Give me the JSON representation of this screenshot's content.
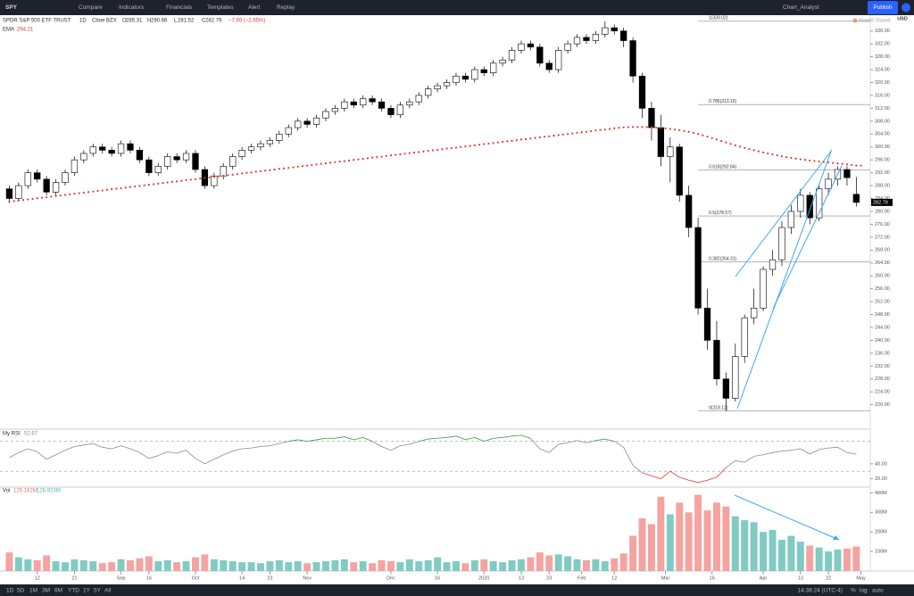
{
  "toolbar": {
    "symbol": "SPY",
    "buttons": [
      "Compare",
      "Indicators",
      "Financials",
      "Templates",
      "Alert",
      "Replay"
    ],
    "layout_name": "Chart_Analyst",
    "publish": "Publish"
  },
  "status": {
    "market": "Market Closed",
    "currency": "USD"
  },
  "chart_data": [
    {
      "type": "candlestick",
      "title": "SPDR S&P 500 ETF TRUST",
      "interval": "1D",
      "exchange": "Cboe BZX",
      "ohlc_labels": [
        "O",
        "H",
        "L",
        "C"
      ],
      "change": "−7.69 (−2.65%)",
      "open": [
        287,
        284,
        288,
        292,
        290,
        286,
        289,
        292,
        296,
        298,
        300,
        299,
        298,
        301,
        299,
        296,
        292,
        294,
        297,
        296,
        298,
        293,
        288,
        291,
        294,
        297,
        299,
        300,
        301,
        302,
        304,
        306,
        308,
        307,
        309,
        311,
        312,
        314,
        313,
        315,
        314,
        312,
        310,
        313,
        314,
        316,
        318,
        319,
        320,
        322,
        321,
        324,
        323,
        326,
        327,
        330,
        332,
        331,
        326,
        324,
        330,
        332,
        334,
        333,
        335,
        337,
        336,
        333,
        322,
        312,
        306,
        297,
        300,
        285,
        275,
        250,
        240,
        228,
        222,
        235,
        247,
        250,
        262,
        265,
        275,
        280,
        285,
        278,
        287,
        290,
        293,
        285.31
      ],
      "high": [
        288,
        289,
        293,
        293,
        291,
        290,
        293,
        297,
        299,
        301,
        301,
        300,
        302,
        302,
        300,
        297,
        295,
        298,
        298,
        299,
        299,
        294,
        292,
        295,
        298,
        300,
        301,
        302,
        303,
        305,
        307,
        309,
        309,
        310,
        312,
        313,
        315,
        315,
        316,
        316,
        315,
        313,
        314,
        315,
        317,
        319,
        320,
        321,
        323,
        323,
        325,
        325,
        327,
        328,
        331,
        333,
        333,
        332,
        327,
        331,
        333,
        335,
        335,
        336,
        339,
        338,
        337,
        334,
        323,
        314,
        310,
        303,
        301,
        288,
        278,
        256,
        246,
        230,
        239,
        248,
        256,
        263,
        268,
        277,
        282,
        287,
        286,
        288,
        292,
        294,
        294,
        290.66
      ],
      "low": [
        283,
        283,
        287,
        289,
        285,
        285,
        288,
        291,
        295,
        297,
        298,
        297,
        297,
        298,
        295,
        291,
        291,
        293,
        295,
        295,
        292,
        287,
        287,
        290,
        293,
        296,
        298,
        299,
        300,
        301,
        303,
        305,
        306,
        306,
        308,
        310,
        311,
        312,
        312,
        313,
        311,
        309,
        309,
        312,
        313,
        315,
        317,
        318,
        319,
        320,
        320,
        322,
        322,
        325,
        326,
        329,
        330,
        325,
        323,
        323,
        329,
        331,
        332,
        332,
        334,
        335,
        331,
        320,
        309,
        302,
        294,
        289,
        283,
        272,
        248,
        237,
        226,
        218,
        221,
        233,
        245,
        249,
        260,
        263,
        273,
        278,
        276,
        277,
        285,
        288,
        288,
        281.52
      ],
      "close": [
        284,
        288,
        292,
        290,
        286,
        289,
        292,
        296,
        298,
        300,
        299,
        298,
        301,
        299,
        296,
        292,
        294,
        297,
        296,
        298,
        293,
        288,
        291,
        294,
        297,
        299,
        300,
        301,
        302,
        304,
        306,
        308,
        307,
        309,
        311,
        312,
        314,
        313,
        315,
        314,
        312,
        310,
        313,
        314,
        316,
        318,
        319,
        320,
        322,
        321,
        324,
        323,
        326,
        327,
        330,
        332,
        331,
        326,
        324,
        330,
        332,
        334,
        333,
        335,
        337,
        336,
        333,
        322,
        312,
        306,
        297,
        300,
        285,
        275,
        250,
        240,
        228,
        222,
        235,
        247,
        250,
        262,
        265,
        275,
        280,
        285,
        278,
        287,
        290,
        293,
        290.48,
        282.79
      ],
      "up_color": "#ffffff",
      "down_color": "#000000",
      "xlim": [
        -1,
        92.5
      ],
      "xticks": [
        {
          "value": 3,
          "label": "12"
        },
        {
          "value": 7,
          "label": "21"
        },
        {
          "value": 12,
          "label": "Sep"
        },
        {
          "value": 15,
          "label": "16"
        },
        {
          "value": 20,
          "label": "Oct"
        },
        {
          "value": 25,
          "label": "14"
        },
        {
          "value": 28,
          "label": "23"
        },
        {
          "value": 32,
          "label": "Nov"
        },
        {
          "value": 41,
          "label": "Dec"
        },
        {
          "value": 46,
          "label": "16"
        },
        {
          "value": 51,
          "label": "2020"
        },
        {
          "value": 55,
          "label": "13"
        },
        {
          "value": 58,
          "label": "23"
        },
        {
          "value": 61.5,
          "label": "Feb"
        },
        {
          "value": 65,
          "label": "12"
        },
        {
          "value": 70.5,
          "label": "Mar"
        },
        {
          "value": 75.5,
          "label": "16"
        },
        {
          "value": 81,
          "label": "Apr"
        },
        {
          "value": 85,
          "label": "13"
        },
        {
          "value": 88,
          "label": "22"
        },
        {
          "value": 91.5,
          "label": "May"
        }
      ],
      "ylim": [
        212.7,
        340.9
      ],
      "yticks": [
        {
          "value": 220,
          "label": "220.00"
        },
        {
          "value": 224,
          "label": "224.00"
        },
        {
          "value": 228,
          "label": "228.00"
        },
        {
          "value": 232,
          "label": "232.00"
        },
        {
          "value": 236,
          "label": "236.00"
        },
        {
          "value": 240,
          "label": "240.00"
        },
        {
          "value": 244,
          "label": "244.00"
        },
        {
          "value": 248,
          "label": "248.00"
        },
        {
          "value": 252,
          "label": "252.00"
        },
        {
          "value": 256,
          "label": "256.00"
        },
        {
          "value": 260,
          "label": "260.00"
        },
        {
          "value": 264,
          "label": "264.00"
        },
        {
          "value": 268,
          "label": "268.00"
        },
        {
          "value": 272,
          "label": "272.00"
        },
        {
          "value": 276,
          "label": "276.00"
        },
        {
          "value": 280,
          "label": "280.00"
        },
        {
          "value": 284,
          "label": "284.00"
        },
        {
          "value": 288,
          "label": "288.00"
        },
        {
          "value": 292,
          "label": "292.00"
        },
        {
          "value": 296,
          "label": "296.00"
        },
        {
          "value": 300,
          "label": "300.00"
        },
        {
          "value": 304,
          "label": "304.00"
        },
        {
          "value": 308,
          "label": "308.00"
        },
        {
          "value": 312,
          "label": "312.00"
        },
        {
          "value": 316,
          "label": "316.00"
        },
        {
          "value": 320,
          "label": "320.00"
        },
        {
          "value": 324,
          "label": "324.00"
        },
        {
          "value": 328,
          "label": "328.00"
        },
        {
          "value": 332,
          "label": "332.00"
        },
        {
          "value": 336,
          "label": "336.00"
        }
      ],
      "overlays": [
        {
          "name": "EMA",
          "color": "#e53935",
          "values": [
            283.0,
            283.4,
            283.7,
            284.1,
            284.4,
            284.8,
            285.1,
            285.5,
            285.8,
            286.2,
            286.5,
            286.9,
            287.2,
            287.6,
            287.9,
            288.3,
            288.6,
            289.0,
            289.3,
            289.7,
            290.0,
            290.4,
            290.7,
            291.1,
            291.4,
            291.8,
            292.1,
            292.5,
            292.8,
            293.2,
            293.5,
            293.9,
            294.2,
            294.6,
            294.9,
            295.3,
            295.6,
            296.0,
            296.3,
            296.7,
            297.0,
            297.4,
            297.7,
            298.1,
            298.4,
            298.8,
            299.1,
            299.5,
            299.8,
            300.2,
            300.5,
            300.9,
            301.2,
            301.6,
            301.9,
            302.3,
            302.6,
            303.0,
            303.3,
            303.7,
            304.0,
            304.4,
            304.7,
            305.1,
            305.4,
            305.8,
            306.1,
            306.2,
            306.2,
            306.1,
            305.9,
            305.6,
            305.2,
            304.7,
            304.0,
            303.2,
            302.3,
            301.4,
            300.5,
            299.7,
            299.0,
            298.3,
            297.7,
            297.1,
            296.6,
            296.2,
            295.8,
            295.5,
            295.2,
            294.9,
            294.6,
            294.21
          ]
        }
      ],
      "fib_start": 74,
      "fib_levels": [
        {
          "label": "1(339.02)",
          "value": 339.02
        },
        {
          "label": "0.786(313.15)",
          "value": 313.15
        },
        {
          "label": "0.618(292.84)",
          "value": 292.84
        },
        {
          "label": "0.5(278.57)",
          "value": 278.57
        },
        {
          "label": "0.382(264.31)",
          "value": 264.31
        },
        {
          "label": "0(218.12)",
          "value": 218.12
        }
      ]
    },
    {
      "type": "line",
      "name": "My RSI",
      "color": "#8a8a8a",
      "over_color": "#2e9e3a",
      "under_color": "#e53935",
      "upper": 70,
      "lower": 30,
      "values": [
        48,
        55,
        60,
        56,
        46,
        52,
        58,
        63,
        65,
        67,
        62,
        60,
        64,
        60,
        55,
        47,
        51,
        56,
        54,
        58,
        47,
        40,
        46,
        52,
        57,
        60,
        61,
        63,
        64,
        67,
        70,
        72,
        70,
        72,
        74,
        74,
        76,
        72,
        75,
        70,
        63,
        58,
        64,
        66,
        70,
        73,
        74,
        75,
        77,
        72,
        75,
        70,
        74,
        75,
        77,
        78,
        74,
        60,
        55,
        66,
        68,
        71,
        68,
        71,
        73,
        70,
        62,
        38,
        28,
        24,
        20,
        30,
        22,
        18,
        15,
        18,
        22,
        35,
        44,
        42,
        50,
        52,
        55,
        57,
        58,
        60,
        53,
        59,
        61,
        62,
        55,
        52.67
      ],
      "ylim": [
        10,
        85
      ],
      "yticks": [
        {
          "value": 20,
          "label": "20.00"
        },
        {
          "value": 40,
          "label": "40.00"
        }
      ]
    },
    {
      "type": "bar",
      "name": "Vol",
      "value_label": "125.162M",
      "ma_label": "128.923M",
      "up_color": "#80cbc4",
      "down_color": "#f5a3a0",
      "values": [
        95,
        70,
        60,
        55,
        80,
        50,
        45,
        60,
        55,
        50,
        40,
        45,
        60,
        55,
        65,
        75,
        50,
        55,
        45,
        50,
        70,
        85,
        60,
        55,
        50,
        45,
        45,
        40,
        50,
        55,
        45,
        50,
        40,
        45,
        50,
        55,
        60,
        45,
        50,
        40,
        55,
        50,
        45,
        60,
        50,
        55,
        70,
        45,
        50,
        40,
        55,
        60,
        50,
        45,
        55,
        60,
        70,
        95,
        80,
        85,
        75,
        60,
        55,
        60,
        50,
        65,
        90,
        180,
        270,
        240,
        380,
        290,
        350,
        300,
        390,
        310,
        350,
        330,
        280,
        260,
        250,
        200,
        210,
        160,
        180,
        150,
        130,
        120,
        100,
        110,
        115,
        125.162
      ],
      "ylim": [
        0,
        420
      ],
      "yticks": [
        {
          "value": 100,
          "label": "100M"
        },
        {
          "value": 200,
          "label": "200M"
        },
        {
          "value": 300,
          "label": "300M"
        },
        {
          "value": 400,
          "label": "400M"
        }
      ]
    }
  ],
  "bottom_bar": {
    "ranges": [
      "1D",
      "5D",
      "1M",
      "3M",
      "6M",
      "YTD",
      "1Y",
      "5Y",
      "All"
    ],
    "clock": "14:38:24 (UTC-4)",
    "options": [
      "%",
      "log",
      "auto"
    ]
  }
}
